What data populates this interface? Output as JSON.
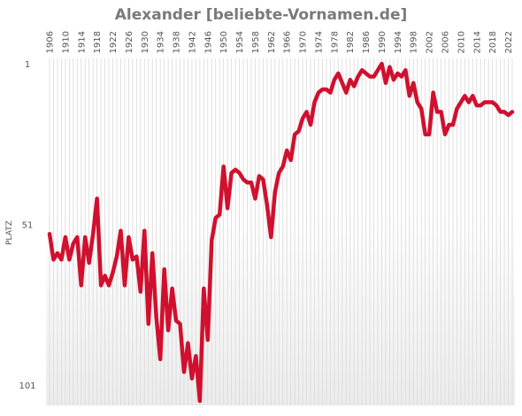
{
  "chart_data": {
    "type": "line",
    "title": "Alexander [beliebte-Vornamen.de]",
    "ylabel": "PLATZ",
    "xlabel": "",
    "y_inverted": true,
    "ylim": [
      1,
      106
    ],
    "y_ticks": [
      "1",
      "51",
      "101"
    ],
    "x_ticks": [
      "1906",
      "1910",
      "1914",
      "1918",
      "1922",
      "1926",
      "1930",
      "1934",
      "1938",
      "1942",
      "1946",
      "1950",
      "1954",
      "1958",
      "1962",
      "1966",
      "1970",
      "1974",
      "1978",
      "1982",
      "1986",
      "1990",
      "1994",
      "1998",
      "2002",
      "2006",
      "2010",
      "2014",
      "2018",
      "2022"
    ],
    "grid": "vertical, one line per year",
    "legend": "none",
    "colors": {
      "line": "#d0102e",
      "grid": "#d9d9d9",
      "title": "#7a7a7a",
      "background_bottom": "#ececec"
    },
    "series": [
      {
        "x": [
          1906,
          1907,
          1908,
          1909,
          1910,
          1911,
          1912,
          1913,
          1914,
          1915,
          1916,
          1917,
          1918,
          1919,
          1920,
          1921,
          1922,
          1923,
          1924,
          1925,
          1926,
          1927,
          1928,
          1929,
          1930,
          1931,
          1932,
          1933,
          1934,
          1935,
          1936,
          1937,
          1938,
          1939,
          1940,
          1941,
          1942,
          1943,
          1944,
          1945,
          1946,
          1947,
          1948,
          1949,
          1950,
          1951,
          1952,
          1953,
          1954,
          1955,
          1956,
          1957,
          1958,
          1959,
          1960,
          1961,
          1962,
          1963,
          1964,
          1965,
          1966,
          1967,
          1968,
          1969,
          1970,
          1971,
          1972,
          1973,
          1974,
          1975,
          1976,
          1977,
          1978,
          1979,
          1980,
          1981,
          1982,
          1983,
          1984,
          1985,
          1986,
          1987,
          1988,
          1989,
          1990,
          1991,
          1992,
          1993,
          1994,
          1995,
          1996,
          1997,
          1998,
          1999,
          2000,
          2001,
          2002,
          2003,
          2004,
          2005,
          2006,
          2007,
          2008,
          2009,
          2010,
          2011,
          2012,
          2013,
          2014,
          2015,
          2016,
          2017,
          2018,
          2019,
          2020,
          2021,
          2022,
          2023
        ],
        "y": [
          54,
          62,
          60,
          62,
          55,
          62,
          57,
          55,
          70,
          55,
          63,
          54,
          43,
          70,
          67,
          70,
          66,
          61,
          53,
          70,
          55,
          62,
          61,
          72,
          53,
          82,
          60,
          80,
          93,
          65,
          84,
          71,
          81,
          82,
          97,
          88,
          99,
          92,
          106,
          71,
          87,
          56,
          49,
          48,
          33,
          46,
          35,
          34,
          35,
          37,
          38,
          38,
          43,
          36,
          37,
          45,
          55,
          41,
          35,
          33,
          28,
          31,
          23,
          22,
          18,
          16,
          20,
          13,
          10,
          9,
          9,
          10,
          6,
          4,
          7,
          10,
          6,
          8,
          5,
          3,
          4,
          5,
          5,
          3,
          1,
          7,
          2,
          6,
          4,
          5,
          3,
          11,
          7,
          13,
          15,
          23,
          23,
          10,
          16,
          16,
          23,
          20,
          20,
          15,
          13,
          11,
          13,
          11,
          14,
          14,
          13,
          13,
          13,
          14,
          16,
          16,
          17,
          16
        ]
      }
    ]
  }
}
